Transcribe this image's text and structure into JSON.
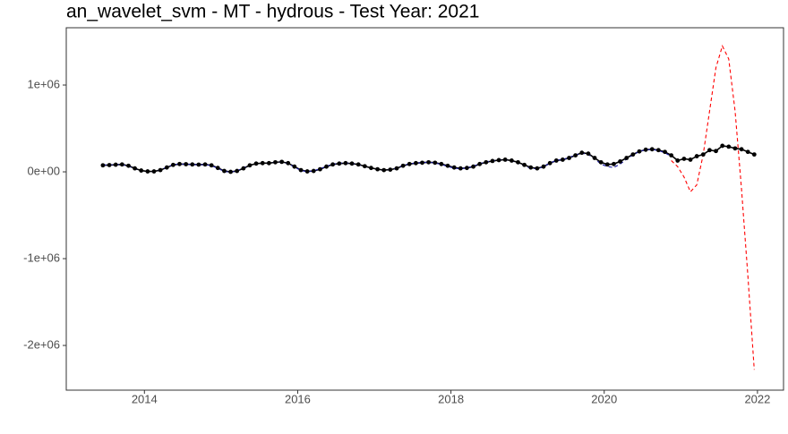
{
  "chart_data": {
    "type": "line",
    "title": "an_wavelet_svm - MT - hydrous - Test Year: 2021",
    "x": [
      2013.458,
      2013.542,
      2013.625,
      2013.708,
      2013.792,
      2013.875,
      2013.958,
      2014.042,
      2014.125,
      2014.208,
      2014.292,
      2014.375,
      2014.458,
      2014.542,
      2014.625,
      2014.708,
      2014.792,
      2014.875,
      2014.958,
      2015.042,
      2015.125,
      2015.208,
      2015.292,
      2015.375,
      2015.458,
      2015.542,
      2015.625,
      2015.708,
      2015.792,
      2015.875,
      2015.958,
      2016.042,
      2016.125,
      2016.208,
      2016.292,
      2016.375,
      2016.458,
      2016.542,
      2016.625,
      2016.708,
      2016.792,
      2016.875,
      2016.958,
      2017.042,
      2017.125,
      2017.208,
      2017.292,
      2017.375,
      2017.458,
      2017.542,
      2017.625,
      2017.708,
      2017.792,
      2017.875,
      2017.958,
      2018.042,
      2018.125,
      2018.208,
      2018.292,
      2018.375,
      2018.458,
      2018.542,
      2018.625,
      2018.708,
      2018.792,
      2018.875,
      2018.958,
      2019.042,
      2019.125,
      2019.208,
      2019.292,
      2019.375,
      2019.458,
      2019.542,
      2019.625,
      2019.708,
      2019.792,
      2019.875,
      2019.958,
      2020.042,
      2020.125,
      2020.208,
      2020.292,
      2020.375,
      2020.458,
      2020.542,
      2020.625,
      2020.708,
      2020.792,
      2020.875,
      2020.958,
      2021.042,
      2021.125,
      2021.208,
      2021.292,
      2021.375,
      2021.458,
      2021.542,
      2021.625,
      2021.708,
      2021.792,
      2021.875,
      2021.958
    ],
    "series": [
      {
        "color": "#000000",
        "style": "points-line",
        "values": [
          75000,
          78000,
          82000,
          85000,
          70000,
          40000,
          15000,
          5000,
          5000,
          20000,
          50000,
          80000,
          90000,
          88000,
          85000,
          83000,
          85000,
          75000,
          45000,
          10000,
          0,
          10000,
          40000,
          75000,
          95000,
          100000,
          100000,
          110000,
          115000,
          100000,
          60000,
          20000,
          5000,
          10000,
          30000,
          60000,
          85000,
          95000,
          100000,
          95000,
          85000,
          65000,
          45000,
          30000,
          20000,
          25000,
          40000,
          70000,
          90000,
          100000,
          105000,
          110000,
          105000,
          90000,
          70000,
          50000,
          40000,
          45000,
          60000,
          90000,
          110000,
          125000,
          135000,
          140000,
          130000,
          110000,
          80000,
          50000,
          40000,
          60000,
          100000,
          130000,
          140000,
          160000,
          190000,
          220000,
          210000,
          160000,
          110000,
          85000,
          90000,
          120000,
          160000,
          200000,
          235000,
          255000,
          260000,
          250000,
          230000,
          190000,
          130000,
          150000,
          140000,
          180000,
          200000,
          250000,
          240000,
          300000,
          290000,
          270000,
          260000,
          230000,
          200000
        ]
      },
      {
        "color": "#1a1aa6",
        "style": "dashed",
        "values": [
          78000,
          80000,
          84000,
          83000,
          65000,
          35000,
          10000,
          0,
          2000,
          22000,
          55000,
          82000,
          90000,
          87000,
          84000,
          82000,
          83000,
          72000,
          40000,
          5000,
          -5000,
          12000,
          45000,
          78000,
          95000,
          100000,
          102000,
          112000,
          112000,
          95000,
          55000,
          15000,
          2000,
          12000,
          35000,
          65000,
          88000,
          100000,
          103000,
          97000,
          82000,
          60000,
          40000,
          25000,
          18000,
          25000,
          45000,
          72000,
          92000,
          102000,
          107000,
          110000,
          102000,
          85000,
          62000,
          42000,
          35000,
          45000,
          65000,
          95000,
          115000,
          128000,
          137000,
          140000,
          125000,
          100000,
          70000,
          40000,
          35000,
          60000,
          100000,
          132000,
          142000,
          165000,
          195000,
          215000,
          200000,
          150000,
          90000,
          60000,
          50000,
          90000,
          145000,
          195000,
          235000,
          255000,
          258000,
          245000,
          220000,
          175000,
          null,
          null,
          null,
          null,
          null,
          null,
          null,
          null,
          null,
          null,
          null,
          null,
          null
        ]
      },
      {
        "color": "#ff0000",
        "style": "dashed",
        "values": [
          null,
          null,
          null,
          null,
          null,
          null,
          null,
          null,
          null,
          null,
          null,
          null,
          null,
          null,
          null,
          null,
          null,
          null,
          null,
          null,
          null,
          null,
          null,
          null,
          null,
          null,
          null,
          null,
          null,
          null,
          null,
          null,
          null,
          null,
          null,
          null,
          null,
          null,
          null,
          null,
          null,
          null,
          null,
          null,
          null,
          null,
          null,
          null,
          null,
          null,
          null,
          null,
          null,
          null,
          null,
          null,
          null,
          null,
          null,
          null,
          null,
          null,
          null,
          null,
          null,
          null,
          null,
          null,
          null,
          null,
          null,
          null,
          null,
          null,
          null,
          null,
          null,
          null,
          null,
          null,
          null,
          null,
          null,
          null,
          null,
          null,
          null,
          null,
          null,
          130000,
          60000,
          -60000,
          -230000,
          -150000,
          200000,
          700000,
          1200000,
          1450000,
          1300000,
          700000,
          -200000,
          -1200000,
          -2280000
        ]
      }
    ],
    "xlim": [
      2012.98,
      2022.34
    ],
    "xticks": [
      2014,
      2016,
      2018,
      2020,
      2022
    ],
    "ylim": [
      -2515000,
      1660000
    ],
    "yticks": [
      {
        "value": -2000000,
        "label": "-2e+06"
      },
      {
        "value": -1000000,
        "label": "-1e+06"
      },
      {
        "value": 0,
        "label": "0e+00"
      },
      {
        "value": 1000000,
        "label": "1e+06"
      }
    ]
  }
}
